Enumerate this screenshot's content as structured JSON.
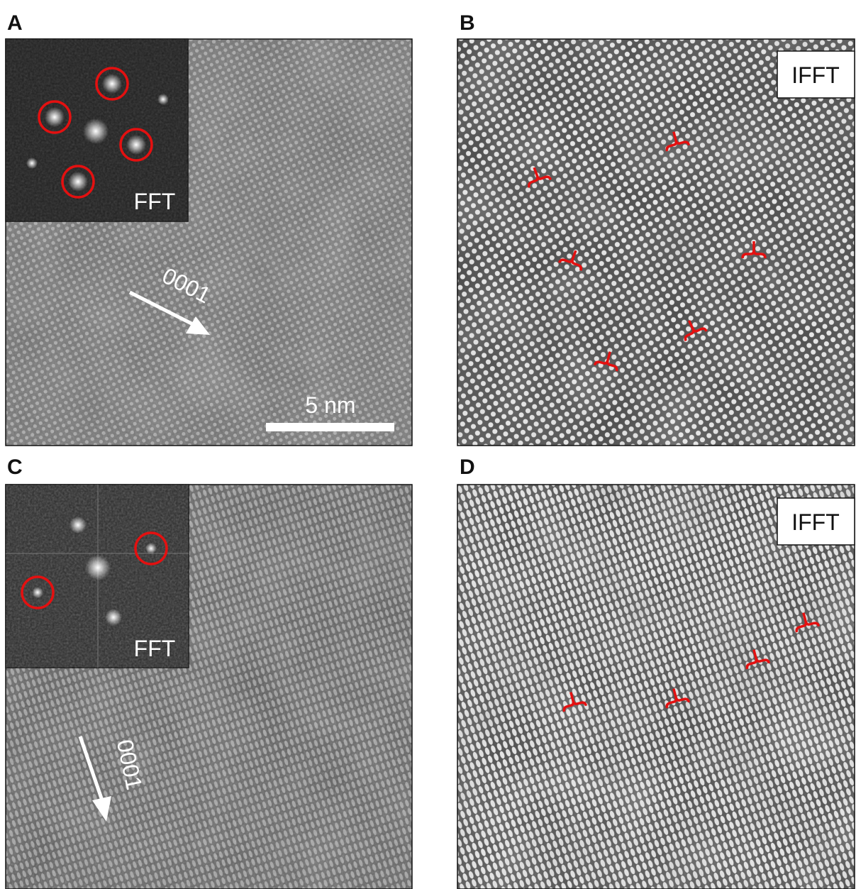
{
  "panels": [
    {
      "label": "A",
      "inset": "FFT",
      "direction": "0001",
      "scale_bar": "5 nm"
    },
    {
      "label": "B",
      "inset": "IFFT"
    },
    {
      "label": "C",
      "inset": "FFT",
      "direction": "0001"
    },
    {
      "label": "D",
      "inset": "IFFT"
    }
  ]
}
